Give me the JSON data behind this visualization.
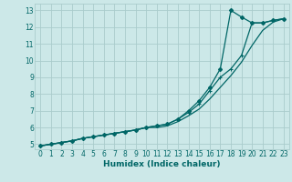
{
  "xlabel": "Humidex (Indice chaleur)",
  "bg_color": "#cce8e8",
  "grid_color": "#aacccc",
  "line_color": "#006666",
  "xlim": [
    -0.5,
    23.5
  ],
  "ylim": [
    4.7,
    13.4
  ],
  "xticks": [
    0,
    1,
    2,
    3,
    4,
    5,
    6,
    7,
    8,
    9,
    10,
    11,
    12,
    13,
    14,
    15,
    16,
    17,
    18,
    19,
    20,
    21,
    22,
    23
  ],
  "yticks": [
    5,
    6,
    7,
    8,
    9,
    10,
    11,
    12,
    13
  ],
  "line1_x": [
    0,
    1,
    2,
    3,
    4,
    5,
    6,
    7,
    8,
    9,
    10,
    11,
    12,
    13,
    14,
    15,
    16,
    17,
    18,
    19,
    20,
    21,
    22,
    23
  ],
  "line1_y": [
    4.9,
    5.0,
    5.1,
    5.2,
    5.35,
    5.45,
    5.55,
    5.65,
    5.75,
    5.85,
    6.0,
    6.1,
    6.2,
    6.5,
    7.0,
    7.6,
    8.4,
    9.5,
    13.0,
    12.6,
    12.25,
    12.25,
    12.4,
    12.5
  ],
  "line2_x": [
    0,
    1,
    2,
    3,
    4,
    5,
    6,
    7,
    8,
    9,
    10,
    11,
    12,
    13,
    14,
    15,
    16,
    17,
    18,
    19,
    20,
    21,
    22,
    23
  ],
  "line2_y": [
    4.9,
    5.0,
    5.1,
    5.2,
    5.35,
    5.45,
    5.55,
    5.65,
    5.75,
    5.85,
    6.0,
    6.1,
    6.2,
    6.5,
    6.9,
    7.4,
    8.2,
    9.0,
    9.5,
    10.3,
    12.25,
    12.25,
    12.4,
    12.5
  ],
  "line3_x": [
    0,
    1,
    2,
    3,
    4,
    5,
    6,
    7,
    8,
    9,
    10,
    11,
    12,
    13,
    14,
    15,
    16,
    17,
    18,
    19,
    20,
    21,
    22,
    23
  ],
  "line3_y": [
    4.9,
    5.0,
    5.1,
    5.2,
    5.35,
    5.45,
    5.55,
    5.65,
    5.75,
    5.85,
    6.0,
    6.0,
    6.1,
    6.35,
    6.7,
    7.1,
    7.7,
    8.4,
    9.1,
    9.9,
    10.9,
    11.8,
    12.3,
    12.5
  ]
}
